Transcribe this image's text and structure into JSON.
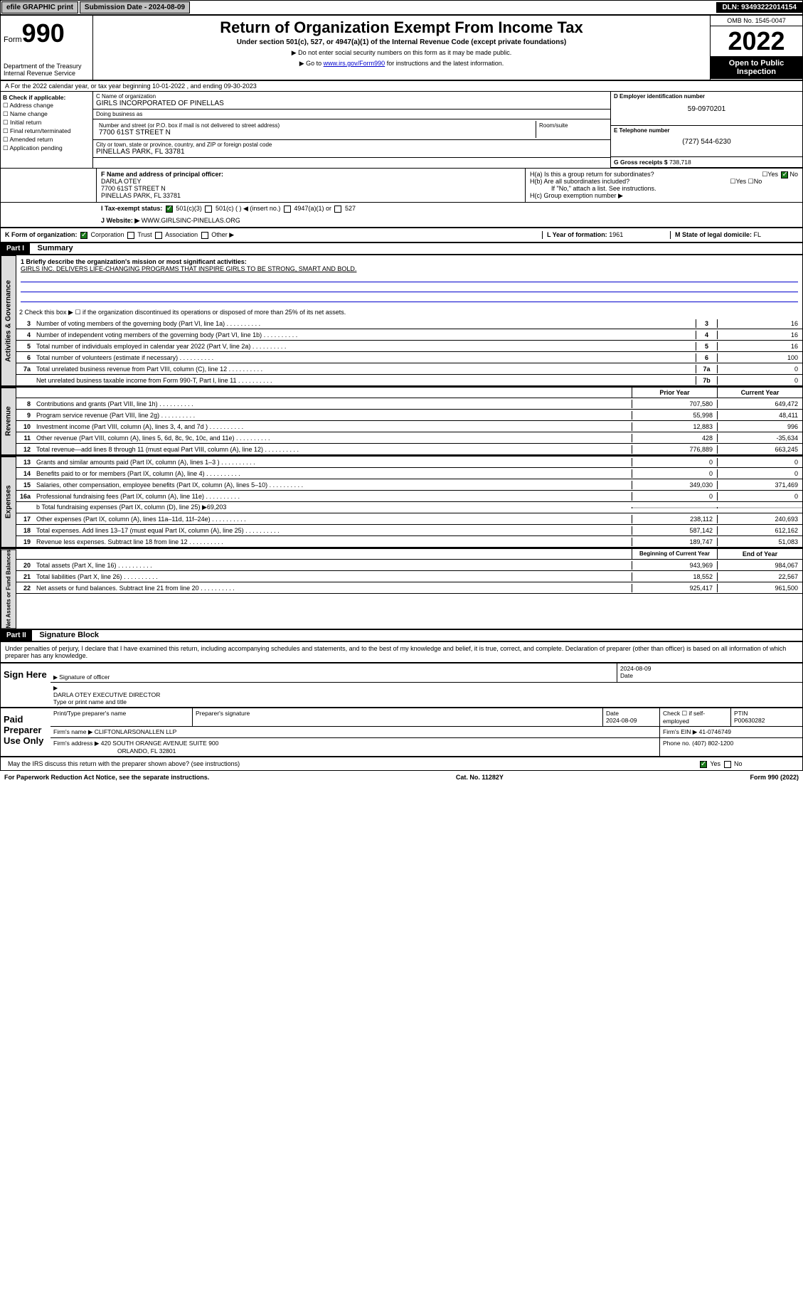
{
  "topbar": {
    "efile": "efile GRAPHIC print",
    "submission_label": "Submission Date - ",
    "submission_date": "2024-08-09",
    "dln_label": "DLN: ",
    "dln": "93493222014154"
  },
  "header": {
    "form_label": "Form",
    "form_number": "990",
    "dept": "Department of the Treasury\nInternal Revenue Service",
    "title": "Return of Organization Exempt From Income Tax",
    "subtitle": "Under section 501(c), 527, or 4947(a)(1) of the Internal Revenue Code (except private foundations)",
    "note1": "▶ Do not enter social security numbers on this form as it may be made public.",
    "note2_pre": "▶ Go to ",
    "note2_link": "www.irs.gov/Form990",
    "note2_post": " for instructions and the latest information.",
    "omb": "OMB No. 1545-0047",
    "year": "2022",
    "inspection": "Open to Public Inspection"
  },
  "row_a": "A For the 2022 calendar year, or tax year beginning 10-01-2022    , and ending 09-30-2023",
  "section_b": {
    "title": "B Check if applicable:",
    "items": [
      "Address change",
      "Name change",
      "Initial return",
      "Final return/terminated",
      "Amended return",
      "Application pending"
    ]
  },
  "section_c": {
    "name_label": "C Name of organization",
    "name": "GIRLS INCORPORATED OF PINELLAS",
    "dba_label": "Doing business as",
    "dba": "",
    "street_label": "Number and street (or P.O. box if mail is not delivered to street address)",
    "street": "7700 61ST STREET N",
    "room_label": "Room/suite",
    "room": "",
    "city_label": "City or town, state or province, country, and ZIP or foreign postal code",
    "city": "PINELLAS PARK, FL  33781"
  },
  "section_d": {
    "ein_label": "D Employer identification number",
    "ein": "59-0970201",
    "phone_label": "E Telephone number",
    "phone": "(727) 544-6230",
    "receipts_label": "G Gross receipts $ ",
    "receipts": "738,718"
  },
  "section_f": {
    "label": "F Name and address of principal officer:",
    "name": "DARLA OTEY",
    "addr1": "7700 61ST STREET N",
    "addr2": "PINELLAS PARK, FL  33781"
  },
  "section_h": {
    "ha": "H(a)  Is this a group return for subordinates?",
    "hb": "H(b)  Are all subordinates included?",
    "hb_note": "If \"No,\" attach a list. See instructions.",
    "hc": "H(c)  Group exemption number ▶"
  },
  "row_i": {
    "label": "I    Tax-exempt status:",
    "opts": [
      "501(c)(3)",
      "501(c) (  ) ◀ (insert no.)",
      "4947(a)(1) or",
      "527"
    ]
  },
  "row_j": {
    "label": "J    Website: ▶ ",
    "url": "WWW.GIRLSINC-PINELLAS.ORG"
  },
  "row_k": {
    "label": "K Form of organization:",
    "opts": [
      "Corporation",
      "Trust",
      "Association",
      "Other ▶"
    ],
    "l_label": "L Year of formation: ",
    "l_val": "1961",
    "m_label": "M State of legal domicile: ",
    "m_val": "FL"
  },
  "part1": {
    "header": "Part I",
    "title": "Summary",
    "line1_label": "1  Briefly describe the organization's mission or most significant activities:",
    "mission": "GIRLS INC. DELIVERS LIFE-CHANGING PROGRAMS THAT INSPIRE GIRLS TO BE STRONG, SMART AND BOLD.",
    "line2": "2   Check this box ▶ ☐  if the organization discontinued its operations or disposed of more than 25% of its net assets.",
    "governance_sidebar": "Activities & Governance",
    "revenue_sidebar": "Revenue",
    "expenses_sidebar": "Expenses",
    "assets_sidebar": "Net Assets or Fund Balances",
    "gov_lines": [
      {
        "n": "3",
        "t": "Number of voting members of the governing body (Part VI, line 1a)",
        "b": "3",
        "v": "16"
      },
      {
        "n": "4",
        "t": "Number of independent voting members of the governing body (Part VI, line 1b)",
        "b": "4",
        "v": "16"
      },
      {
        "n": "5",
        "t": "Total number of individuals employed in calendar year 2022 (Part V, line 2a)",
        "b": "5",
        "v": "16"
      },
      {
        "n": "6",
        "t": "Total number of volunteers (estimate if necessary)",
        "b": "6",
        "v": "100"
      },
      {
        "n": "7a",
        "t": "Total unrelated business revenue from Part VIII, column (C), line 12",
        "b": "7a",
        "v": "0"
      },
      {
        "n": "",
        "t": "Net unrelated business taxable income from Form 990-T, Part I, line 11",
        "b": "7b",
        "v": "0"
      }
    ],
    "col_headers": {
      "prior": "Prior Year",
      "current": "Current Year",
      "begin": "Beginning of Current Year",
      "end": "End of Year"
    },
    "rev_lines": [
      {
        "n": "8",
        "t": "Contributions and grants (Part VIII, line 1h)",
        "p": "707,580",
        "c": "649,472"
      },
      {
        "n": "9",
        "t": "Program service revenue (Part VIII, line 2g)",
        "p": "55,998",
        "c": "48,411"
      },
      {
        "n": "10",
        "t": "Investment income (Part VIII, column (A), lines 3, 4, and 7d )",
        "p": "12,883",
        "c": "996"
      },
      {
        "n": "11",
        "t": "Other revenue (Part VIII, column (A), lines 5, 6d, 8c, 9c, 10c, and 11e)",
        "p": "428",
        "c": "-35,634"
      },
      {
        "n": "12",
        "t": "Total revenue—add lines 8 through 11 (must equal Part VIII, column (A), line 12)",
        "p": "776,889",
        "c": "663,245"
      }
    ],
    "exp_lines": [
      {
        "n": "13",
        "t": "Grants and similar amounts paid (Part IX, column (A), lines 1–3 )",
        "p": "0",
        "c": "0"
      },
      {
        "n": "14",
        "t": "Benefits paid to or for members (Part IX, column (A), line 4)",
        "p": "0",
        "c": "0"
      },
      {
        "n": "15",
        "t": "Salaries, other compensation, employee benefits (Part IX, column (A), lines 5–10)",
        "p": "349,030",
        "c": "371,469"
      },
      {
        "n": "16a",
        "t": "Professional fundraising fees (Part IX, column (A), line 11e)",
        "p": "0",
        "c": "0"
      }
    ],
    "line16b": "b  Total fundraising expenses (Part IX, column (D), line 25) ▶69,203",
    "exp_lines2": [
      {
        "n": "17",
        "t": "Other expenses (Part IX, column (A), lines 11a–11d, 11f–24e)",
        "p": "238,112",
        "c": "240,693"
      },
      {
        "n": "18",
        "t": "Total expenses. Add lines 13–17 (must equal Part IX, column (A), line 25)",
        "p": "587,142",
        "c": "612,162"
      },
      {
        "n": "19",
        "t": "Revenue less expenses. Subtract line 18 from line 12",
        "p": "189,747",
        "c": "51,083"
      }
    ],
    "asset_lines": [
      {
        "n": "20",
        "t": "Total assets (Part X, line 16)",
        "p": "943,969",
        "c": "984,067"
      },
      {
        "n": "21",
        "t": "Total liabilities (Part X, line 26)",
        "p": "18,552",
        "c": "22,567"
      },
      {
        "n": "22",
        "t": "Net assets or fund balances. Subtract line 21 from line 20",
        "p": "925,417",
        "c": "961,500"
      }
    ]
  },
  "part2": {
    "header": "Part II",
    "title": "Signature Block",
    "declaration": "Under penalties of perjury, I declare that I have examined this return, including accompanying schedules and statements, and to the best of my knowledge and belief, it is true, correct, and complete. Declaration of preparer (other than officer) is based on all information of which preparer has any knowledge.",
    "sign_here": "Sign Here",
    "sig_officer": "Signature of officer",
    "sig_date": "2024-08-09",
    "date_label": "Date",
    "officer_name": "DARLA OTEY EXECUTIVE DIRECTOR",
    "officer_name_label": "Type or print name and title",
    "paid_preparer": "Paid Preparer Use Only",
    "prep_name_label": "Print/Type preparer's name",
    "prep_sig_label": "Preparer's signature",
    "prep_date_label": "Date",
    "prep_date": "2024-08-09",
    "self_emp": "Check ☐ if self-employed",
    "ptin_label": "PTIN",
    "ptin": "P00630282",
    "firm_name_label": "Firm's name    ▶ ",
    "firm_name": "CLIFTONLARSONALLEN LLP",
    "firm_ein_label": "Firm's EIN ▶ ",
    "firm_ein": "41-0746749",
    "firm_addr_label": "Firm's address ▶ ",
    "firm_addr1": "420 SOUTH ORANGE AVENUE SUITE 900",
    "firm_addr2": "ORLANDO, FL  32801",
    "firm_phone_label": "Phone no. ",
    "firm_phone": "(407) 802-1200",
    "discuss": "May the IRS discuss this return with the preparer shown above? (see instructions)"
  },
  "footer": {
    "left": "For Paperwork Reduction Act Notice, see the separate instructions.",
    "mid": "Cat. No. 11282Y",
    "right": "Form 990 (2022)"
  }
}
